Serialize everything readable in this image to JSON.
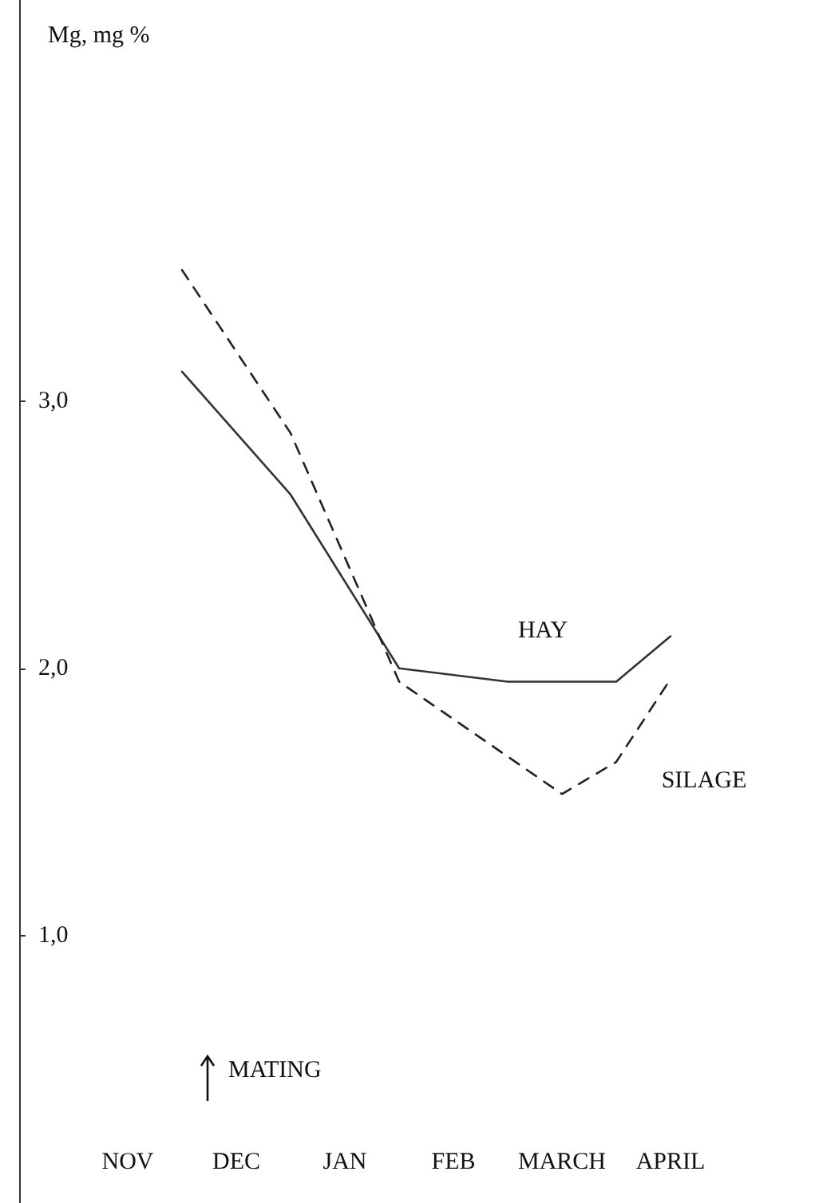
{
  "chart_data": {
    "type": "line",
    "ylabel": "Mg, mg %",
    "marker": "none",
    "grid": false,
    "legend": false,
    "categories": [
      null,
      null,
      "NOV",
      null,
      "DEC",
      null,
      "JAN",
      null,
      "FEB",
      null,
      "MARCH",
      null,
      "APRIL",
      null
    ],
    "ylim": [
      0,
      4.5
    ],
    "yticks": [
      {
        "value": 1,
        "label": "1,0"
      },
      {
        "value": 2,
        "label": "2,0"
      },
      {
        "value": 3,
        "label": "3,0"
      }
    ],
    "series": [
      {
        "name": "HAY",
        "color": "#333333",
        "line_style": "solid",
        "values": [
          null,
          null,
          null,
          3.11,
          null,
          2.65,
          null,
          2.0,
          null,
          1.95,
          null,
          1.95,
          2.12,
          null
        ]
      },
      {
        "name": "SILAGE",
        "color": "#222222",
        "line_style": "dashed",
        "values": [
          null,
          null,
          null,
          3.49,
          null,
          2.88,
          null,
          1.95,
          null,
          null,
          1.53,
          1.65,
          1.96,
          null
        ]
      }
    ],
    "annotations": [
      "MATING"
    ]
  }
}
